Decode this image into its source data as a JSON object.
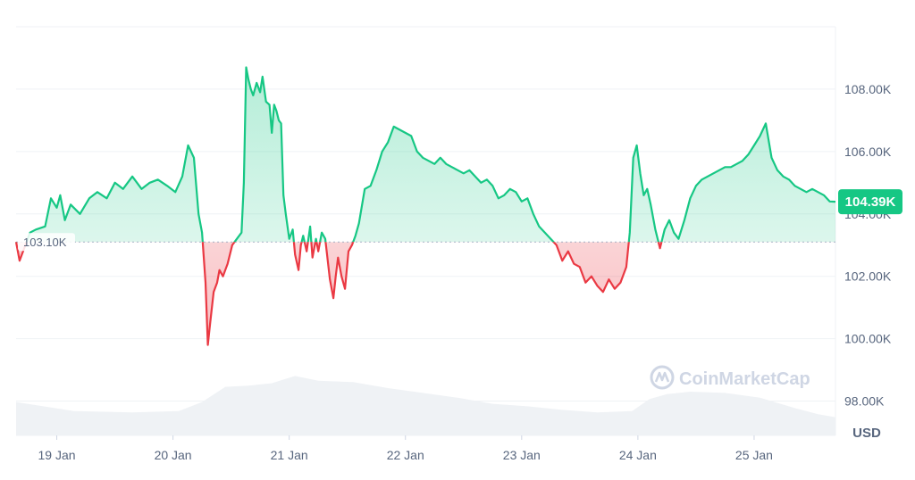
{
  "chart_data": {
    "type": "line",
    "currency": "USD",
    "baseline": 103.1,
    "baseline_label": "103.10K",
    "current_value": 104.39,
    "current_label": "104.39K",
    "ylim": [
      96.9,
      110.0
    ],
    "y_ticks": [
      {
        "value": 98,
        "label": "98.00K"
      },
      {
        "value": 100,
        "label": "100.00K"
      },
      {
        "value": 102,
        "label": "102.00K"
      },
      {
        "value": 104,
        "label": "104.00K"
      },
      {
        "value": 106,
        "label": "106.00K"
      },
      {
        "value": 108,
        "label": "108.00K"
      }
    ],
    "x_range": [
      0,
      7.05
    ],
    "x_ticks": [
      {
        "value": 0.35,
        "label": "19 Jan"
      },
      {
        "value": 1.35,
        "label": "20 Jan"
      },
      {
        "value": 2.35,
        "label": "21 Jan"
      },
      {
        "value": 3.35,
        "label": "22 Jan"
      },
      {
        "value": 4.35,
        "label": "23 Jan"
      },
      {
        "value": 5.35,
        "label": "24 Jan"
      },
      {
        "value": 6.35,
        "label": "25 Jan"
      }
    ],
    "series": [
      {
        "x": [
          0.0,
          0.03,
          0.08,
          0.12,
          0.17,
          0.25,
          0.3,
          0.35,
          0.38,
          0.42,
          0.47,
          0.55,
          0.63,
          0.7,
          0.78,
          0.85,
          0.92,
          1.0,
          1.08,
          1.15,
          1.22,
          1.3,
          1.37,
          1.43,
          1.48,
          1.53,
          1.57,
          1.6,
          1.63,
          1.65,
          1.67,
          1.7,
          1.73,
          1.75,
          1.78,
          1.82,
          1.86,
          1.9,
          1.94,
          1.96,
          1.98,
          2.0,
          2.02,
          2.04,
          2.07,
          2.1,
          2.12,
          2.15,
          2.18,
          2.2,
          2.22,
          2.24,
          2.26,
          2.28,
          2.3,
          2.32,
          2.35,
          2.38,
          2.4,
          2.43,
          2.45,
          2.47,
          2.5,
          2.53,
          2.55,
          2.58,
          2.6,
          2.63,
          2.66,
          2.7,
          2.73,
          2.75,
          2.77,
          2.8,
          2.83,
          2.86,
          2.89,
          2.92,
          2.95,
          3.0,
          3.05,
          3.1,
          3.15,
          3.2,
          3.25,
          3.3,
          3.35,
          3.4,
          3.45,
          3.5,
          3.55,
          3.6,
          3.65,
          3.7,
          3.75,
          3.8,
          3.85,
          3.9,
          3.95,
          4.0,
          4.05,
          4.1,
          4.15,
          4.2,
          4.25,
          4.3,
          4.35,
          4.4,
          4.45,
          4.5,
          4.55,
          4.6,
          4.65,
          4.7,
          4.75,
          4.8,
          4.85,
          4.9,
          4.95,
          5.0,
          5.05,
          5.1,
          5.15,
          5.2,
          5.22,
          5.25,
          5.28,
          5.31,
          5.34,
          5.37,
          5.4,
          5.43,
          5.46,
          5.5,
          5.54,
          5.58,
          5.62,
          5.66,
          5.7,
          5.75,
          5.8,
          5.85,
          5.9,
          5.95,
          6.0,
          6.05,
          6.1,
          6.15,
          6.2,
          6.25,
          6.3,
          6.35,
          6.4,
          6.45,
          6.5,
          6.55,
          6.6,
          6.65,
          6.7,
          6.75,
          6.8,
          6.85,
          6.9,
          6.95,
          7.0,
          7.05
        ],
        "y": [
          103.1,
          102.5,
          103.0,
          103.4,
          103.5,
          103.6,
          104.5,
          104.2,
          104.6,
          103.8,
          104.3,
          104.0,
          104.5,
          104.7,
          104.5,
          105.0,
          104.8,
          105.2,
          104.8,
          105.0,
          105.1,
          104.9,
          104.7,
          105.2,
          106.2,
          105.8,
          104.0,
          103.4,
          101.8,
          99.8,
          100.5,
          101.5,
          101.8,
          102.2,
          102.0,
          102.4,
          103.0,
          103.2,
          103.4,
          105.0,
          108.7,
          108.3,
          108.0,
          107.8,
          108.2,
          107.9,
          108.4,
          107.6,
          107.5,
          106.6,
          107.5,
          107.3,
          107.0,
          106.9,
          104.6,
          104.0,
          103.2,
          103.5,
          102.7,
          102.2,
          103.0,
          103.3,
          102.8,
          103.6,
          102.6,
          103.2,
          102.8,
          103.4,
          103.2,
          101.9,
          101.3,
          102.0,
          102.6,
          102.0,
          101.6,
          102.8,
          103.0,
          103.3,
          103.7,
          104.8,
          104.9,
          105.4,
          106.0,
          106.3,
          106.8,
          106.7,
          106.6,
          106.5,
          106.0,
          105.8,
          105.7,
          105.6,
          105.8,
          105.6,
          105.5,
          105.4,
          105.3,
          105.4,
          105.2,
          105.0,
          105.1,
          104.9,
          104.5,
          104.6,
          104.8,
          104.7,
          104.4,
          104.5,
          104.0,
          103.6,
          103.4,
          103.2,
          103.0,
          102.5,
          102.8,
          102.4,
          102.3,
          101.8,
          102.0,
          101.7,
          101.5,
          101.9,
          101.6,
          101.8,
          102.0,
          102.3,
          103.4,
          105.8,
          106.2,
          105.3,
          104.6,
          104.8,
          104.3,
          103.5,
          102.9,
          103.5,
          103.8,
          103.4,
          103.2,
          103.8,
          104.5,
          104.9,
          105.1,
          105.2,
          105.3,
          105.4,
          105.5,
          105.5,
          105.6,
          105.7,
          105.9,
          106.2,
          106.5,
          106.9,
          105.8,
          105.4,
          105.2,
          105.1,
          104.9,
          104.8,
          104.7,
          104.8,
          104.7,
          104.6,
          104.4,
          104.39
        ]
      }
    ],
    "volume": {
      "x": [
        0.0,
        0.5,
        1.0,
        1.4,
        1.6,
        1.8,
        2.0,
        2.2,
        2.4,
        2.6,
        2.9,
        3.2,
        3.5,
        3.8,
        4.1,
        4.4,
        4.7,
        5.0,
        5.3,
        5.45,
        5.6,
        5.8,
        6.1,
        6.4,
        6.7,
        6.9,
        7.05
      ],
      "v": [
        0.55,
        0.4,
        0.38,
        0.4,
        0.55,
        0.8,
        0.82,
        0.86,
        0.98,
        0.9,
        0.88,
        0.78,
        0.7,
        0.62,
        0.52,
        0.48,
        0.42,
        0.38,
        0.4,
        0.6,
        0.68,
        0.72,
        0.7,
        0.62,
        0.45,
        0.35,
        0.3
      ]
    },
    "colors": {
      "up": "#16c784",
      "down": "#ea3943",
      "up_fill": "#16c784",
      "down_fill": "#ea3943",
      "volume": "#eff2f5",
      "grid": "#eff2f5",
      "baseline": "#a6b0c3"
    },
    "grid": true
  },
  "watermark": {
    "text": "CoinMarketCap",
    "icon": "coinmarketcap-logo-icon"
  }
}
